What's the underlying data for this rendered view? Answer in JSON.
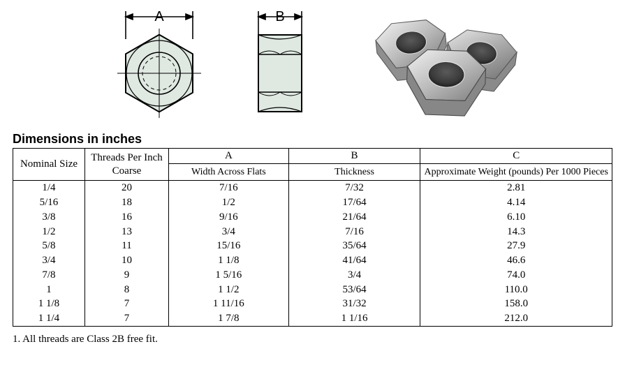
{
  "diagram": {
    "label_a": "A",
    "label_b": "B",
    "nut_fill": "#dfe9e2",
    "nut_stroke": "#000000",
    "photo_bg": "#ffffff"
  },
  "heading": "Dimensions in inches",
  "columns": {
    "nominal": "Nominal Size",
    "tpi_line1": "Threads Per Inch",
    "tpi_line2": "Coarse",
    "a": "A",
    "a_sub": "Width Across Flats",
    "b": "B",
    "b_sub": "Thickness",
    "c": "C",
    "c_sub": "Approximate Weight (pounds) Per 1000 Pieces"
  },
  "rows": [
    {
      "nominal": "1/4",
      "tpi": "20",
      "a": "7/16",
      "b": "7/32",
      "c": "2.81"
    },
    {
      "nominal": "5/16",
      "tpi": "18",
      "a": "1/2",
      "b": "17/64",
      "c": "4.14"
    },
    {
      "nominal": "3/8",
      "tpi": "16",
      "a": "9/16",
      "b": "21/64",
      "c": "6.10"
    },
    {
      "nominal": "1/2",
      "tpi": "13",
      "a": "3/4",
      "b": "7/16",
      "c": "14.3"
    },
    {
      "nominal": "5/8",
      "tpi": "11",
      "a": "15/16",
      "b": "35/64",
      "c": "27.9"
    },
    {
      "nominal": "3/4",
      "tpi": "10",
      "a": "1 1/8",
      "b": "41/64",
      "c": "46.6"
    },
    {
      "nominal": "7/8",
      "tpi": "9",
      "a": "1 5/16",
      "b": "3/4",
      "c": "74.0"
    },
    {
      "nominal": "1",
      "tpi": "8",
      "a": "1 1/2",
      "b": "53/64",
      "c": "110.0"
    },
    {
      "nominal": "1 1/8",
      "tpi": "7",
      "a": "1 11/16",
      "b": "31/32",
      "c": "158.0"
    },
    {
      "nominal": "1 1/4",
      "tpi": "7",
      "a": "1 7/8",
      "b": "1 1/16",
      "c": "212.0"
    }
  ],
  "footnote": "1. All threads are Class 2B free fit."
}
